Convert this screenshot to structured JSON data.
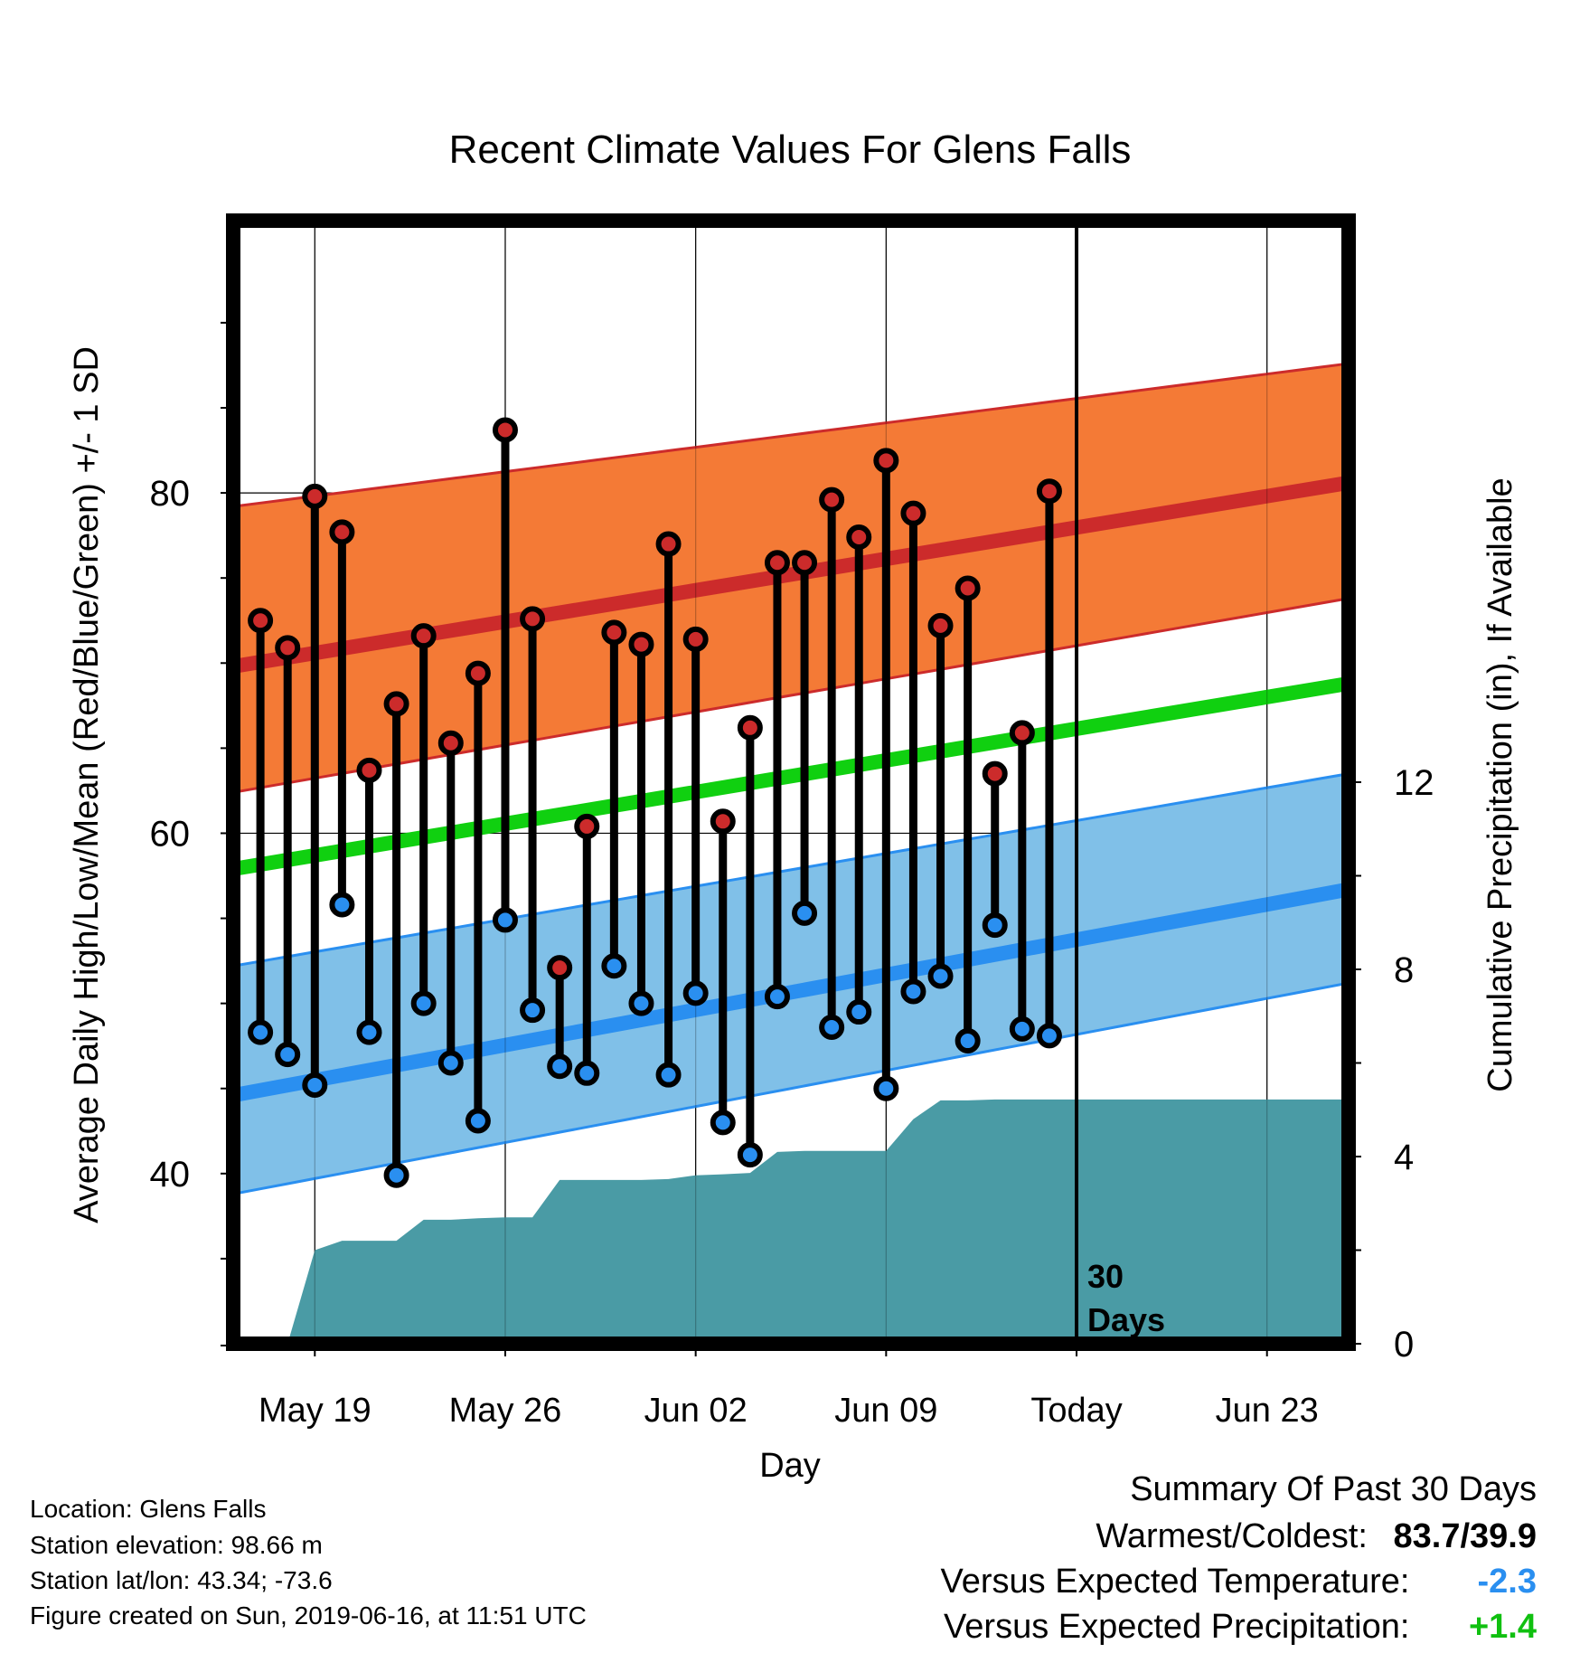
{
  "chart_data": {
    "type": "line",
    "title": "Recent Climate Values For Glens Falls",
    "xlabel": "Day",
    "ylabel": "Average Daily High/Low/Mean (Red/Blue/Green) +/- 1 SD",
    "y2label": "Cumulative Precipitation (in), If Available",
    "x_ticks": [
      "May 19",
      "May 26",
      "Jun 02",
      "Jun 09",
      "Today",
      "Jun 23"
    ],
    "y_ticks": [
      "40",
      "60",
      "80"
    ],
    "y2_ticks": [
      "0",
      "4",
      "8",
      "12"
    ],
    "ylim": [
      30,
      96
    ],
    "y2lim": [
      0,
      24
    ],
    "x_range_days": [
      "2019-05-16",
      "2019-06-26"
    ],
    "today": "2019-06-16",
    "today_annotation": [
      "30",
      "Days"
    ],
    "colors": {
      "high": "#cc2b2b",
      "high_band": "#f47a36",
      "low": "#2a8ff0",
      "low_band": "#80c0e8",
      "mean": "#10d010",
      "precip": "#4a9ba5",
      "high_dot": "#cc2b2b",
      "low_dot": "#2a8ff0"
    },
    "normals": {
      "high": {
        "start": 69.8,
        "end": 80.6
      },
      "high_sd": {
        "start_upper": 79.2,
        "end_upper": 87.6,
        "start_lower": 62.4,
        "end_lower": 73.8
      },
      "low": {
        "start": 44.6,
        "end": 56.7
      },
      "low_sd": {
        "start_upper": 52.2,
        "end_upper": 63.5,
        "start_lower": 38.8,
        "end_lower": 51.2
      },
      "mean": {
        "start": 57.9,
        "end": 68.8
      }
    },
    "daily": [
      {
        "date": "2019-05-17",
        "high": 72.5,
        "low": 48.3
      },
      {
        "date": "2019-05-18",
        "high": 70.9,
        "low": 47.0
      },
      {
        "date": "2019-05-19",
        "high": 79.8,
        "low": 45.2
      },
      {
        "date": "2019-05-20",
        "high": 77.7,
        "low": 55.8
      },
      {
        "date": "2019-05-21",
        "high": 63.7,
        "low": 48.3
      },
      {
        "date": "2019-05-22",
        "high": 67.6,
        "low": 39.9
      },
      {
        "date": "2019-05-23",
        "high": 71.6,
        "low": 50.0
      },
      {
        "date": "2019-05-24",
        "high": 65.3,
        "low": 46.5
      },
      {
        "date": "2019-05-25",
        "high": 69.4,
        "low": 43.1
      },
      {
        "date": "2019-05-26",
        "high": 83.7,
        "low": 54.9
      },
      {
        "date": "2019-05-27",
        "high": 72.6,
        "low": 49.6
      },
      {
        "date": "2019-05-28",
        "high": 52.1,
        "low": 46.3
      },
      {
        "date": "2019-05-29",
        "high": 60.4,
        "low": 45.9
      },
      {
        "date": "2019-05-30",
        "high": 71.8,
        "low": 52.2
      },
      {
        "date": "2019-05-31",
        "high": 71.1,
        "low": 50.0
      },
      {
        "date": "2019-06-01",
        "high": 77.0,
        "low": 45.8
      },
      {
        "date": "2019-06-02",
        "high": 71.4,
        "low": 50.6
      },
      {
        "date": "2019-06-03",
        "high": 60.7,
        "low": 43.0
      },
      {
        "date": "2019-06-04",
        "high": 66.2,
        "low": 41.1
      },
      {
        "date": "2019-06-05",
        "high": 75.9,
        "low": 50.4
      },
      {
        "date": "2019-06-06",
        "high": 75.9,
        "low": 55.3
      },
      {
        "date": "2019-06-07",
        "high": 79.6,
        "low": 48.6
      },
      {
        "date": "2019-06-08",
        "high": 77.4,
        "low": 49.5
      },
      {
        "date": "2019-06-09",
        "high": 81.9,
        "low": 45.0
      },
      {
        "date": "2019-06-10",
        "high": 78.8,
        "low": 50.7
      },
      {
        "date": "2019-06-11",
        "high": 72.2,
        "low": 51.6
      },
      {
        "date": "2019-06-12",
        "high": 74.4,
        "low": 47.8
      },
      {
        "date": "2019-06-13",
        "high": 63.5,
        "low": 54.6
      },
      {
        "date": "2019-06-14",
        "high": 65.9,
        "low": 48.5
      },
      {
        "date": "2019-06-15",
        "high": 80.1,
        "low": 48.1
      }
    ],
    "precip_cumulative": [
      {
        "date": "2019-05-17",
        "value": 0.0
      },
      {
        "date": "2019-05-18",
        "value": 0.0
      },
      {
        "date": "2019-05-19",
        "value": 2.0
      },
      {
        "date": "2019-05-20",
        "value": 2.2
      },
      {
        "date": "2019-05-21",
        "value": 2.2
      },
      {
        "date": "2019-05-22",
        "value": 2.2
      },
      {
        "date": "2019-05-23",
        "value": 2.65
      },
      {
        "date": "2019-05-24",
        "value": 2.65
      },
      {
        "date": "2019-05-25",
        "value": 2.68
      },
      {
        "date": "2019-05-26",
        "value": 2.7
      },
      {
        "date": "2019-05-27",
        "value": 2.7
      },
      {
        "date": "2019-05-28",
        "value": 3.5
      },
      {
        "date": "2019-05-29",
        "value": 3.5
      },
      {
        "date": "2019-05-30",
        "value": 3.5
      },
      {
        "date": "2019-05-31",
        "value": 3.5
      },
      {
        "date": "2019-06-01",
        "value": 3.52
      },
      {
        "date": "2019-06-02",
        "value": 3.6
      },
      {
        "date": "2019-06-03",
        "value": 3.62
      },
      {
        "date": "2019-06-04",
        "value": 3.65
      },
      {
        "date": "2019-06-05",
        "value": 4.1
      },
      {
        "date": "2019-06-06",
        "value": 4.12
      },
      {
        "date": "2019-06-07",
        "value": 4.12
      },
      {
        "date": "2019-06-08",
        "value": 4.12
      },
      {
        "date": "2019-06-09",
        "value": 4.12
      },
      {
        "date": "2019-06-10",
        "value": 4.8
      },
      {
        "date": "2019-06-11",
        "value": 5.2
      },
      {
        "date": "2019-06-12",
        "value": 5.2
      },
      {
        "date": "2019-06-13",
        "value": 5.22
      },
      {
        "date": "2019-06-14",
        "value": 5.22
      },
      {
        "date": "2019-06-15",
        "value": 5.22
      },
      {
        "date": "2019-06-26",
        "value": 5.22
      }
    ]
  },
  "info": {
    "location": "Location: Glens Falls",
    "elevation": "Station elevation: 98.66 m",
    "latlon": "Station lat/lon: 43.34; -73.6",
    "created": "Figure created on Sun, 2019-06-16, at 11:51 UTC"
  },
  "summary": {
    "heading": "Summary Of Past 30 Days",
    "warmest_label": "Warmest/Coldest:",
    "warmest_value": "83.7/39.9",
    "temp_label": "Versus Expected Temperature:",
    "temp_value": "-2.3",
    "temp_color": "#2a8ff0",
    "precip_label": "Versus Expected Precipitation:",
    "precip_value": "+1.4",
    "precip_color": "#10c010"
  }
}
